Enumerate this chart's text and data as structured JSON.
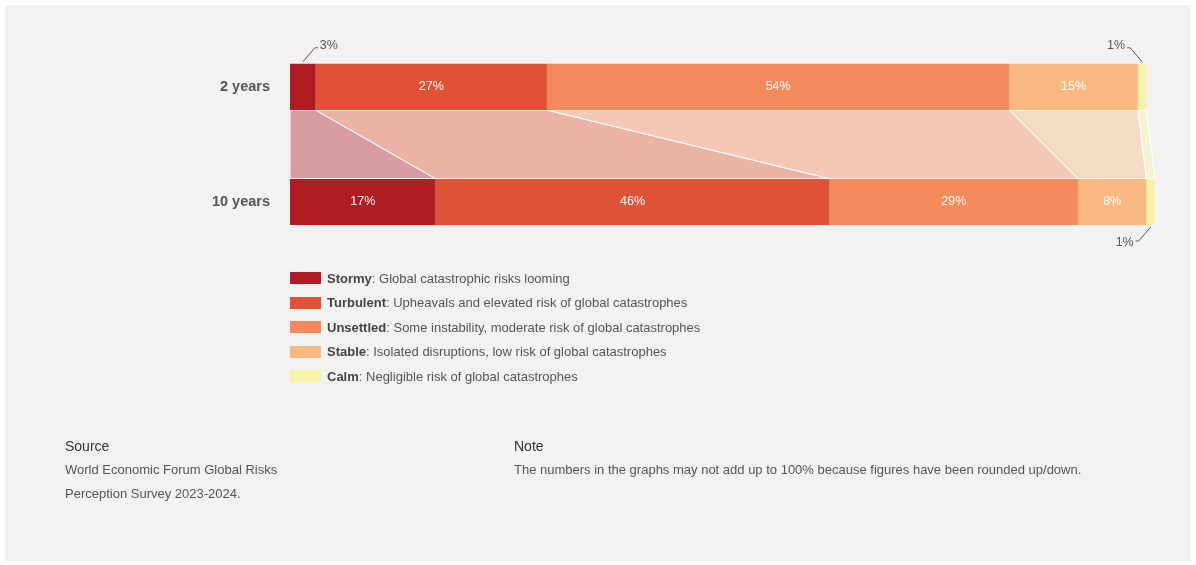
{
  "chart_data": {
    "type": "bar",
    "orientation": "horizontal",
    "stacked": true,
    "legend": "bottom",
    "categories": [
      "2 years",
      "10 years"
    ],
    "series": [
      {
        "name": "Stormy: Global catastrophic risks looming",
        "color": "#b01c22",
        "values": [
          3,
          17
        ],
        "value_labels": [
          "3%",
          "17%"
        ]
      },
      {
        "name": "Turbulent: Upheavals and elevated risk of global catastrophes",
        "color": "#e05235",
        "values": [
          27,
          46
        ],
        "value_labels": [
          "27%",
          "46%"
        ]
      },
      {
        "name": "Unsettled: Some instability, moderate risk of global catastrophes",
        "color": "#f4895c",
        "values": [
          54,
          29
        ],
        "value_labels": [
          "54%",
          "29%"
        ]
      },
      {
        "name": "Stable: Isolated disruptions, low risk of global catastrophes",
        "color": "#f9b880",
        "values": [
          15,
          8
        ],
        "value_labels": [
          "15%",
          "8%"
        ]
      },
      {
        "name": "Calm: Negligible risk of global catastrophes",
        "color": "#f8f3a8",
        "values": [
          1,
          1
        ],
        "value_labels": [
          "1%",
          "1%"
        ]
      }
    ],
    "annotations": [
      "Source",
      "World Economic Forum Global Risks Perception Survey 2023-2024.",
      "Note",
      "The numbers in the graphs may not add up to 100% because figures have been rounded up/down."
    ]
  }
}
